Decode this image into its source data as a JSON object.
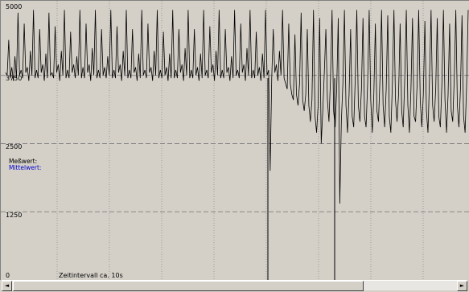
{
  "chart_data": {
    "type": "line",
    "yticks": [
      "5000",
      "3750",
      "2500",
      "1250",
      "0"
    ],
    "ylim": [
      0,
      5000
    ],
    "grid": true,
    "legend": [
      "Meßwert:",
      "Mittelwert:"
    ],
    "annotation": "Zeitintervall ca. 10s",
    "series": [
      {
        "name": "Meßwert:",
        "color": "#000000",
        "values": [
          3800,
          3750,
          4400,
          3700,
          3900,
          3650,
          4100,
          3700,
          4900,
          3750,
          3850,
          3700,
          4700,
          3800,
          3900,
          3650,
          4200,
          3750,
          4950,
          3700,
          3850,
          3700,
          4600,
          3800,
          3950,
          3650,
          4150,
          3700,
          4900,
          3750,
          3800,
          3700,
          4650,
          3800,
          3950,
          3650,
          4200,
          3750,
          4950,
          3700,
          3850,
          3700,
          4550,
          3800,
          3950,
          3700,
          4100,
          3750,
          4950,
          3700,
          3900,
          3700,
          4700,
          3800,
          3950,
          3650,
          4250,
          3750,
          4950,
          3700,
          3850,
          3700,
          4600,
          3750,
          3900,
          3700,
          4100,
          3750,
          4950,
          3700,
          3850,
          3700,
          4650,
          3800,
          3950,
          3650,
          4200,
          3750,
          4950,
          3700,
          3850,
          3700,
          4600,
          3800,
          3900,
          3650,
          4150,
          3700,
          4950,
          3750,
          3850,
          3700,
          4700,
          3800,
          3900,
          3650,
          4200,
          3750,
          4950,
          3700,
          3850,
          3700,
          4550,
          3750,
          3900,
          3650,
          4150,
          3700,
          4950,
          3700,
          3850,
          3700,
          4600,
          3800,
          3950,
          3650,
          4250,
          3750,
          4950,
          3700,
          3850,
          3700,
          4600,
          3750,
          3900,
          3650,
          4150,
          3700,
          4950,
          3750,
          3850,
          3700,
          4650,
          3800,
          3950,
          3650,
          4200,
          3750,
          4950,
          3700,
          3850,
          3700,
          4600,
          3800,
          3900,
          3650,
          4100,
          3700,
          4950,
          3750,
          3850,
          3700,
          4700,
          3800,
          3950,
          3650,
          4250,
          3750,
          4950,
          3700,
          3850,
          3700,
          4550,
          3750,
          3900,
          3650,
          4150,
          3700,
          4950,
          3750,
          3850,
          2000,
          3700,
          4600,
          3800,
          3950,
          3650,
          4200,
          3750,
          4950,
          3700,
          3600,
          3500,
          4700,
          3600,
          3400,
          3300,
          4500,
          3400,
          3200,
          3600,
          4900,
          3300,
          3100,
          3400,
          4600,
          3200,
          2900,
          3300,
          4950,
          3000,
          2700,
          3200,
          4800,
          2500,
          3100,
          3800,
          4600,
          3300,
          2900,
          3700,
          4950,
          3100,
          2800,
          3500,
          4800,
          1400,
          2900,
          3600,
          4950,
          3200,
          2700,
          3400,
          4600,
          3000,
          2800,
          3700,
          4950,
          3200,
          2900,
          3500,
          4800,
          3000,
          2800,
          3600,
          4950,
          3300,
          2700,
          3400,
          4700,
          3100,
          2900,
          3700,
          4950,
          3200,
          2800,
          3500,
          4850,
          3000,
          2700,
          3600,
          4950,
          3300,
          2900,
          3400,
          4700,
          3100,
          2800,
          3700,
          4950,
          3200,
          2700,
          3500,
          4800,
          3000,
          2900,
          3600,
          4950,
          3300,
          2800,
          3400,
          4750,
          3100,
          2700,
          3700,
          4950,
          3200,
          2900,
          3500,
          4800,
          3000,
          2800,
          3600,
          4950,
          3300,
          2700,
          3400,
          4700,
          3100,
          2900,
          3700,
          4950,
          3200,
          2800,
          3500,
          4850,
          3000,
          2700,
          3600,
          4950
        ]
      },
      {
        "name": "Mittelwert:",
        "color": "#0000cc",
        "values": []
      }
    ]
  },
  "footer": {
    "interval_label": "Zeitintervall ca. 10s"
  },
  "scrollbar": {
    "left_arrow": "◄",
    "right_arrow": "►"
  }
}
